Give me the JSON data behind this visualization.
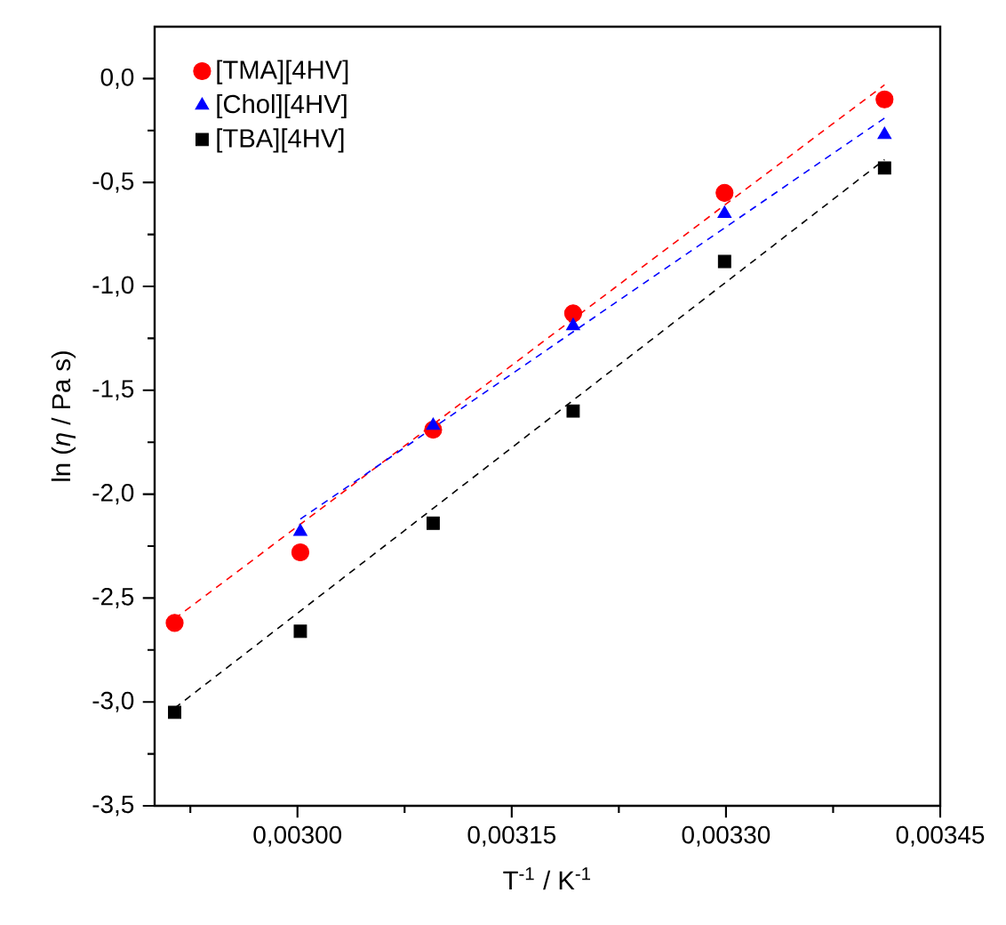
{
  "chart_data": {
    "type": "scatter",
    "xlabel": "T$^{-1}$ / K$^{-1}$",
    "ylabel": "ln (*η* / Pa s)",
    "xlim": [
      0.0029,
      0.00345
    ],
    "ylim": [
      -3.5,
      0.25
    ],
    "xticks": [
      {
        "value": 0.002925,
        "label": null
      },
      {
        "value": 0.003,
        "label": "0,00300"
      },
      {
        "value": 0.003075,
        "label": null
      },
      {
        "value": 0.00315,
        "label": "0,00315"
      },
      {
        "value": 0.003225,
        "label": null
      },
      {
        "value": 0.0033,
        "label": "0,00330"
      },
      {
        "value": 0.003375,
        "label": null
      },
      {
        "value": 0.00345,
        "label": "0,00345"
      }
    ],
    "yticks": [
      {
        "value": -3.5,
        "label": "-3,5"
      },
      {
        "value": -3.25,
        "label": null
      },
      {
        "value": -3.0,
        "label": "-3,0"
      },
      {
        "value": -2.75,
        "label": null
      },
      {
        "value": -2.5,
        "label": "-2,5"
      },
      {
        "value": -2.25,
        "label": null
      },
      {
        "value": -2.0,
        "label": "-2,0"
      },
      {
        "value": -1.75,
        "label": null
      },
      {
        "value": -1.5,
        "label": "-1,5"
      },
      {
        "value": -1.25,
        "label": null
      },
      {
        "value": -1.0,
        "label": "-1,0"
      },
      {
        "value": -0.75,
        "label": null
      },
      {
        "value": -0.5,
        "label": "-0,5"
      },
      {
        "value": -0.25,
        "label": null
      },
      {
        "value": 0.0,
        "label": "0,0"
      }
    ],
    "legend": "top left",
    "series": [
      {
        "name": "[TMA][4HV]",
        "color": "#ff0000",
        "marker": "circle",
        "x": [
          0.002914,
          0.003002,
          0.003095,
          0.003193,
          0.003299,
          0.003411
        ],
        "values": [
          -2.62,
          -2.28,
          -1.69,
          -1.13,
          -0.55,
          -0.1
        ]
      },
      {
        "name": "[Chol][4HV]",
        "color": "#0000ff",
        "marker": "triangle",
        "x": [
          0.003002,
          0.003095,
          0.003193,
          0.003299,
          0.003411
        ],
        "values": [
          -2.18,
          -1.67,
          -1.19,
          -0.65,
          -0.27
        ]
      },
      {
        "name": "[TBA][4HV]",
        "color": "#000000",
        "marker": "square",
        "x": [
          0.002914,
          0.003002,
          0.003095,
          0.003193,
          0.003299,
          0.003411
        ],
        "values": [
          -3.05,
          -2.66,
          -2.14,
          -1.6,
          -0.88,
          -0.43
        ]
      },
      {
        "type": "line",
        "line_style": "dashed",
        "marker": "none",
        "color": "#ff0000",
        "x": [
          0.002914,
          0.003411
        ],
        "values": [
          -2.6,
          -0.03
        ]
      },
      {
        "type": "line",
        "line_style": "dashed",
        "marker": "none",
        "color": "#0000ff",
        "x": [
          0.003002,
          0.003411
        ],
        "values": [
          -2.12,
          -0.19
        ]
      },
      {
        "type": "line",
        "line_style": "dashed",
        "marker": "none",
        "color": "#000000",
        "x": [
          0.002914,
          0.003411
        ],
        "values": [
          -3.03,
          -0.39
        ]
      }
    ]
  }
}
